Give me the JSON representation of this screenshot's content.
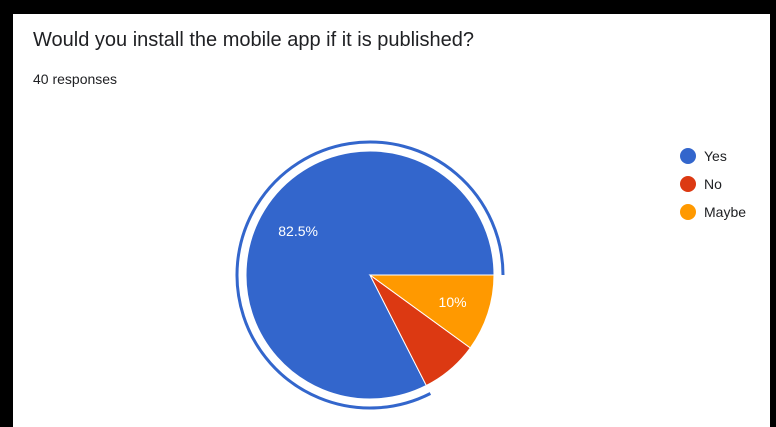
{
  "question": {
    "title": "Would you install the mobile app if it is published?",
    "responses": "40 responses"
  },
  "chart_data": {
    "type": "pie",
    "slices": [
      {
        "label": "Yes",
        "value": 82.5,
        "color": "#3366cc",
        "data_label": "82.5%"
      },
      {
        "label": "No",
        "value": 7.5,
        "color": "#dc3912",
        "data_label": ""
      },
      {
        "label": "Maybe",
        "value": 10,
        "color": "#ff9900",
        "data_label": "10%"
      }
    ],
    "highlighted_slice": "Yes",
    "legend_position": "right",
    "legend": [
      "Yes",
      "No",
      "Maybe"
    ]
  }
}
